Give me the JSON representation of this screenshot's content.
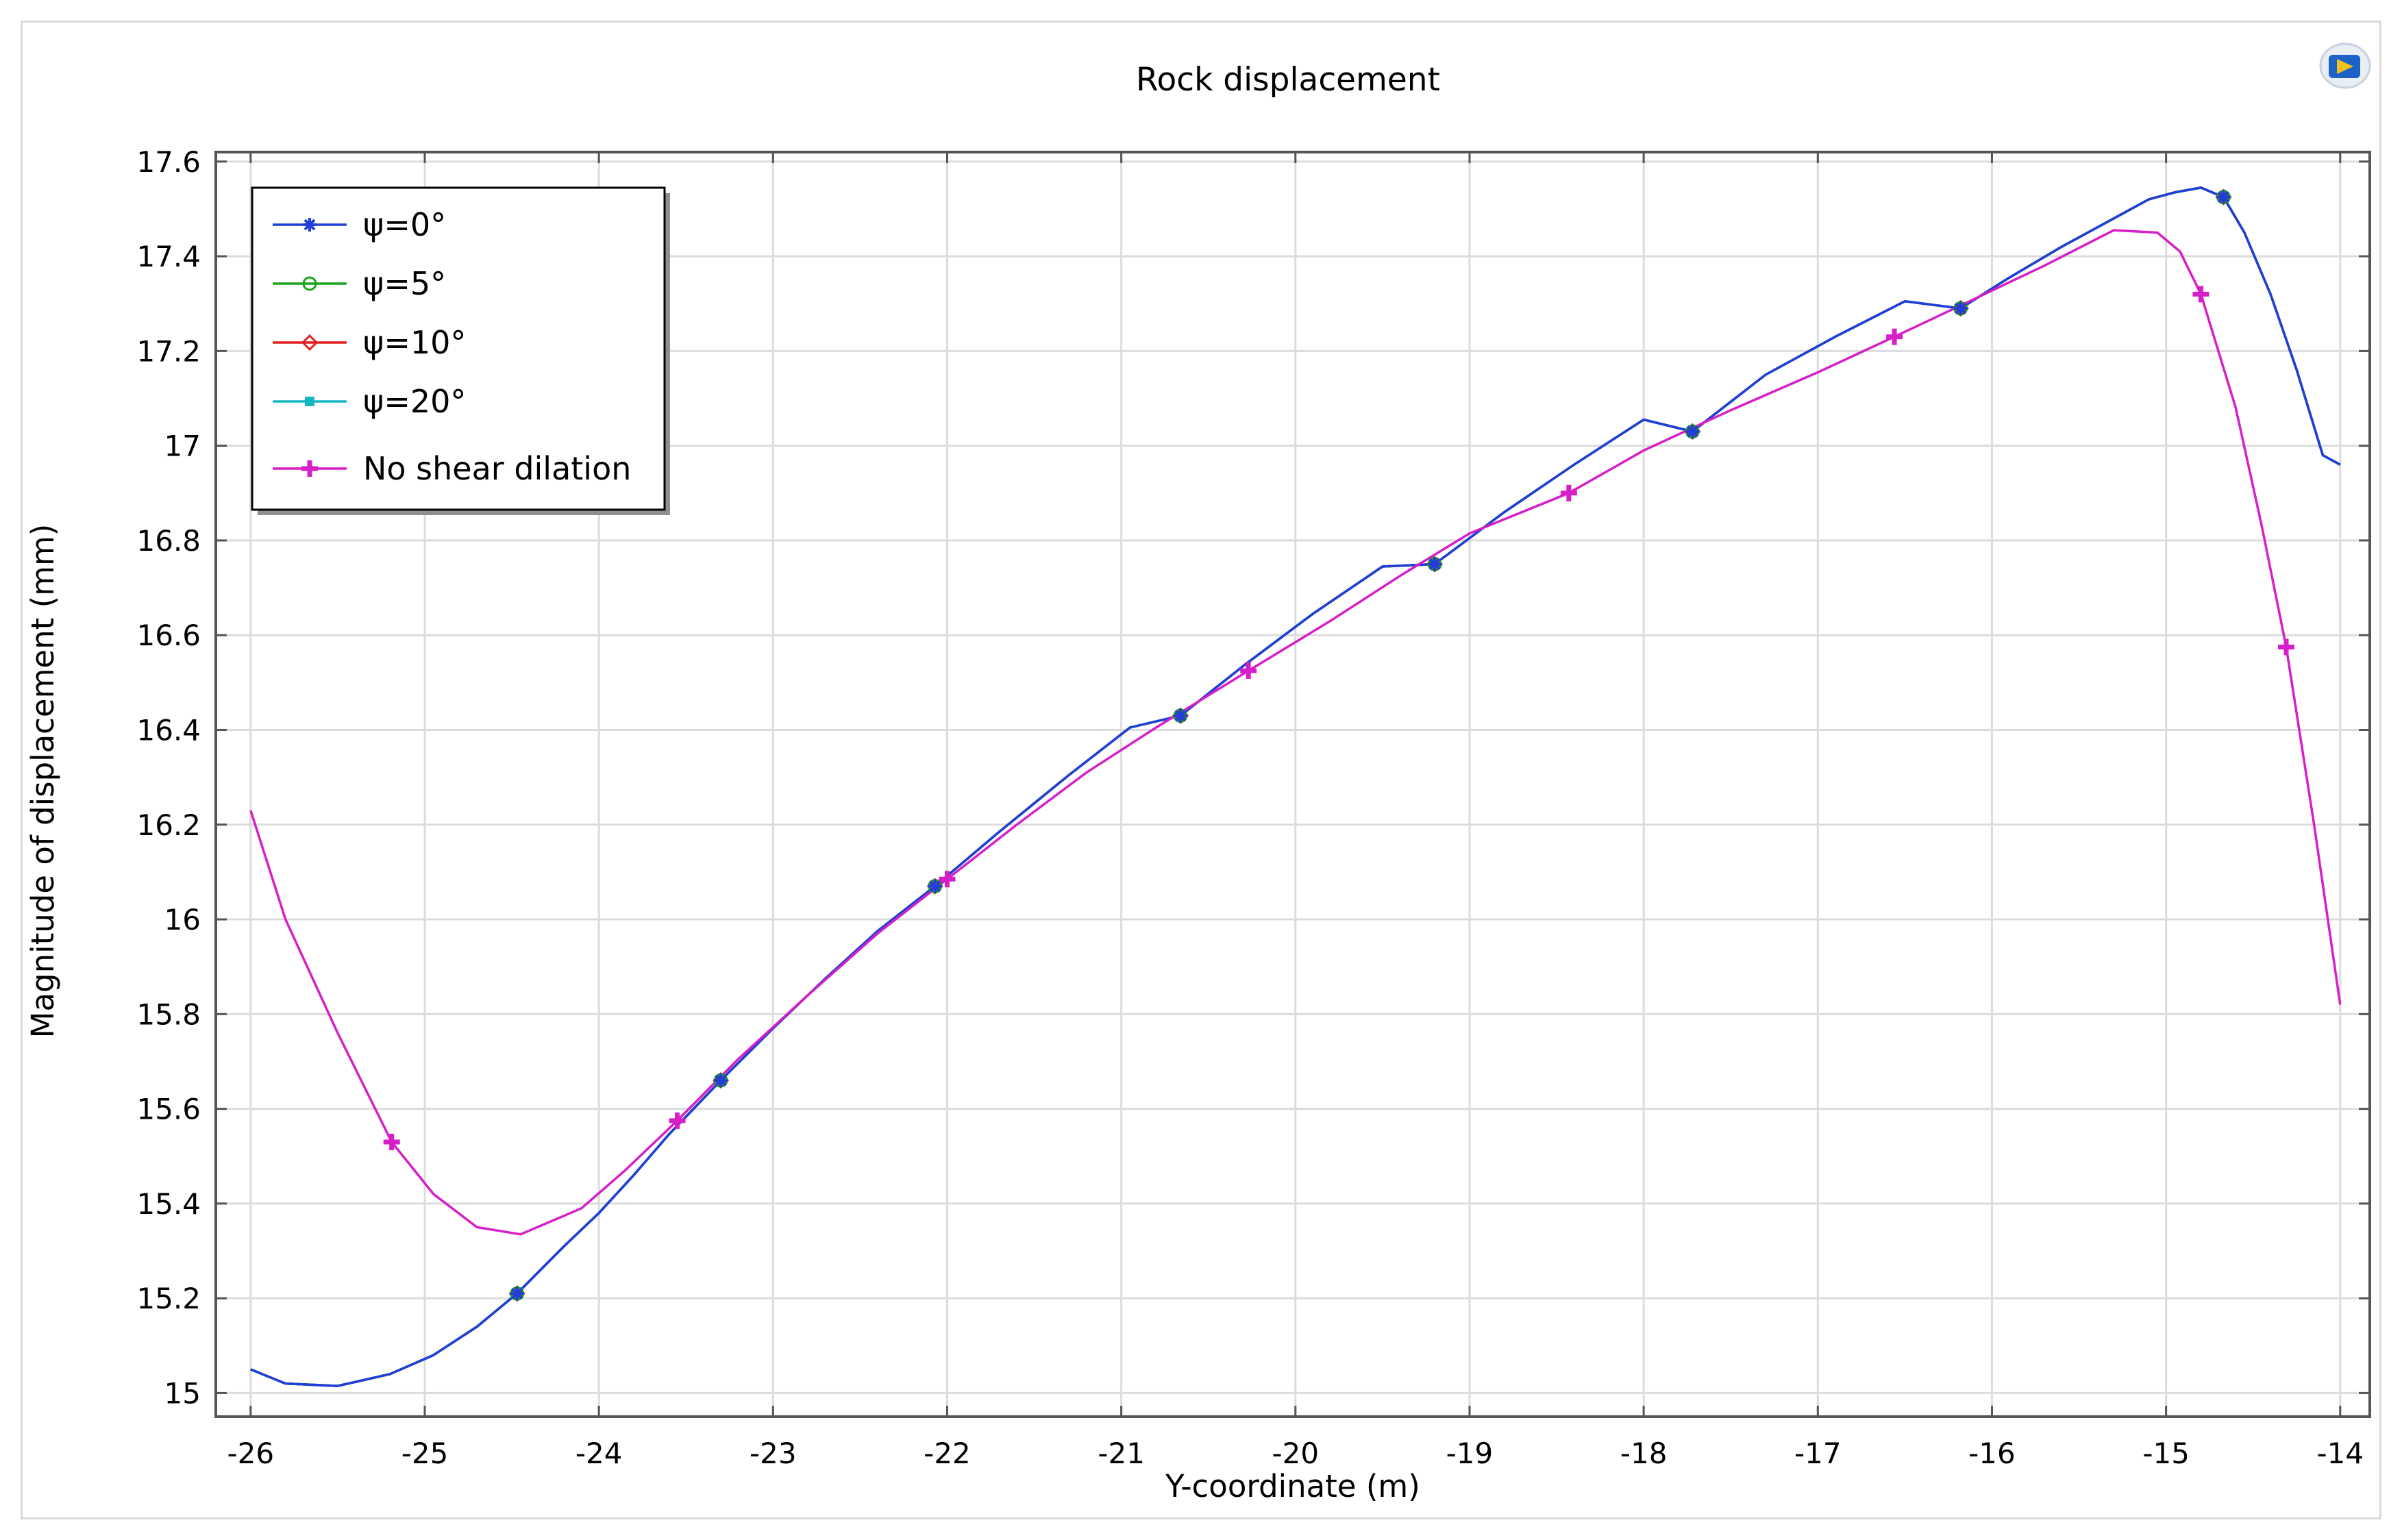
{
  "chart_data": {
    "type": "line",
    "title": "Rock displacement",
    "xlabel": "Y-coordinate (m)",
    "ylabel": "Magnitude of displacement (mm)",
    "xlim": [
      -26.2,
      -13.83
    ],
    "ylim": [
      14.95,
      17.62
    ],
    "x_ticks": [
      -26,
      -25,
      -24,
      -23,
      -22,
      -21,
      -20,
      -19,
      -18,
      -17,
      -16,
      -15,
      -14
    ],
    "x_tick_labels": [
      "-26",
      "-25",
      "-24",
      "-23",
      "-22",
      "-21",
      "-20",
      "-19",
      "-18",
      "-17",
      "-16",
      "-15",
      "-14"
    ],
    "y_ticks": [
      15,
      15.2,
      15.4,
      15.6,
      15.8,
      16,
      16.2,
      16.4,
      16.6,
      16.8,
      17,
      17.2,
      17.4,
      17.6
    ],
    "y_tick_labels": [
      "15",
      "15.2",
      "15.4",
      "15.6",
      "15.8",
      "16",
      "16.2",
      "16.4",
      "16.6",
      "16.8",
      "17",
      "17.2",
      "17.4",
      "17.6"
    ],
    "grid": true,
    "legend_position": "top-left",
    "series": [
      {
        "name": "ψ=0°",
        "color": "#1f3fd8",
        "marker": "asterisk",
        "x": [
          -26.0,
          -25.8,
          -25.5,
          -25.2,
          -24.95,
          -24.7,
          -24.47,
          -24.2,
          -24.0,
          -23.8,
          -23.6,
          -23.3,
          -23.0,
          -22.7,
          -22.4,
          -22.07,
          -21.7,
          -21.3,
          -20.95,
          -20.66,
          -20.3,
          -19.9,
          -19.5,
          -19.2,
          -18.8,
          -18.4,
          -18.0,
          -17.72,
          -17.3,
          -16.9,
          -16.5,
          -16.18,
          -15.9,
          -15.6,
          -15.3,
          -15.1,
          -14.95,
          -14.8,
          -14.67,
          -14.55,
          -14.4,
          -14.25,
          -14.1,
          -14.0
        ],
        "y": [
          15.05,
          15.02,
          15.015,
          15.04,
          15.08,
          15.14,
          15.21,
          15.31,
          15.38,
          15.46,
          15.545,
          15.66,
          15.77,
          15.875,
          15.975,
          16.07,
          16.185,
          16.305,
          16.405,
          16.43,
          16.535,
          16.645,
          16.745,
          16.75,
          16.86,
          16.96,
          17.055,
          17.03,
          17.15,
          17.23,
          17.305,
          17.29,
          17.355,
          17.42,
          17.48,
          17.52,
          17.535,
          17.545,
          17.525,
          17.45,
          17.32,
          17.16,
          16.98,
          16.96
        ]
      },
      {
        "name": "ψ=5°",
        "color": "#1aa51a",
        "marker": "circle",
        "x": [
          -26.0,
          -25.8,
          -25.5,
          -25.2,
          -24.95,
          -24.7,
          -24.47,
          -24.2,
          -24.0,
          -23.8,
          -23.6,
          -23.3,
          -23.0,
          -22.7,
          -22.4,
          -22.07,
          -21.7,
          -21.3,
          -20.95,
          -20.66,
          -20.3,
          -19.9,
          -19.5,
          -19.2,
          -18.8,
          -18.4,
          -18.0,
          -17.72,
          -17.3,
          -16.9,
          -16.5,
          -16.18,
          -15.9,
          -15.6,
          -15.3,
          -15.1,
          -14.95,
          -14.8,
          -14.67,
          -14.55,
          -14.4,
          -14.25,
          -14.1,
          -14.0
        ],
        "y": [
          15.05,
          15.02,
          15.015,
          15.04,
          15.08,
          15.14,
          15.21,
          15.31,
          15.38,
          15.46,
          15.545,
          15.66,
          15.77,
          15.875,
          15.975,
          16.07,
          16.185,
          16.305,
          16.405,
          16.43,
          16.535,
          16.645,
          16.745,
          16.75,
          16.86,
          16.96,
          17.055,
          17.03,
          17.15,
          17.23,
          17.305,
          17.29,
          17.355,
          17.42,
          17.48,
          17.52,
          17.535,
          17.545,
          17.525,
          17.45,
          17.32,
          17.16,
          16.98,
          16.96
        ]
      },
      {
        "name": "ψ=10°",
        "color": "#e02020",
        "marker": "diamond",
        "x": [
          -26.0,
          -25.8,
          -25.5,
          -25.2,
          -24.95,
          -24.7,
          -24.47,
          -24.2,
          -24.0,
          -23.8,
          -23.6,
          -23.3,
          -23.0,
          -22.7,
          -22.4,
          -22.07,
          -21.7,
          -21.3,
          -20.95,
          -20.66,
          -20.3,
          -19.9,
          -19.5,
          -19.2,
          -18.8,
          -18.4,
          -18.0,
          -17.72,
          -17.3,
          -16.9,
          -16.5,
          -16.18,
          -15.9,
          -15.6,
          -15.3,
          -15.1,
          -14.95,
          -14.8,
          -14.67,
          -14.55,
          -14.4,
          -14.25,
          -14.1,
          -14.0
        ],
        "y": [
          15.05,
          15.02,
          15.015,
          15.04,
          15.08,
          15.14,
          15.21,
          15.31,
          15.38,
          15.46,
          15.545,
          15.66,
          15.77,
          15.875,
          15.975,
          16.07,
          16.185,
          16.305,
          16.405,
          16.43,
          16.535,
          16.645,
          16.745,
          16.75,
          16.86,
          16.96,
          17.055,
          17.03,
          17.15,
          17.23,
          17.305,
          17.29,
          17.355,
          17.42,
          17.48,
          17.52,
          17.535,
          17.545,
          17.525,
          17.45,
          17.32,
          17.16,
          16.98,
          16.96
        ]
      },
      {
        "name": "ψ=20°",
        "color": "#17b6c0",
        "marker": "square",
        "x": [
          -26.0,
          -25.8,
          -25.5,
          -25.2,
          -24.95,
          -24.7,
          -24.47,
          -24.2,
          -24.0,
          -23.8,
          -23.6,
          -23.3,
          -23.0,
          -22.7,
          -22.4,
          -22.07,
          -21.7,
          -21.3,
          -20.95,
          -20.66,
          -20.3,
          -19.9,
          -19.5,
          -19.2,
          -18.8,
          -18.4,
          -18.0,
          -17.72,
          -17.3,
          -16.9,
          -16.5,
          -16.18,
          -15.9,
          -15.6,
          -15.3,
          -15.1,
          -14.95,
          -14.8,
          -14.67,
          -14.55,
          -14.4,
          -14.25,
          -14.1,
          -14.0
        ],
        "y": [
          15.05,
          15.02,
          15.015,
          15.04,
          15.08,
          15.14,
          15.21,
          15.31,
          15.38,
          15.46,
          15.545,
          15.66,
          15.77,
          15.875,
          15.975,
          16.07,
          16.185,
          16.305,
          16.405,
          16.43,
          16.535,
          16.645,
          16.745,
          16.75,
          16.86,
          16.96,
          17.055,
          17.03,
          17.15,
          17.23,
          17.305,
          17.29,
          17.355,
          17.42,
          17.48,
          17.52,
          17.535,
          17.545,
          17.525,
          17.45,
          17.32,
          17.16,
          16.98,
          16.96
        ]
      },
      {
        "name": "No shear dilation",
        "color": "#d61fc8",
        "marker": "plus",
        "x": [
          -26.0,
          -25.8,
          -25.5,
          -25.19,
          -24.95,
          -24.7,
          -24.45,
          -24.1,
          -23.85,
          -23.55,
          -23.2,
          -22.8,
          -22.4,
          -22.0,
          -21.6,
          -21.2,
          -20.8,
          -20.27,
          -19.8,
          -19.4,
          -19.0,
          -18.43,
          -18.0,
          -17.5,
          -17.0,
          -16.56,
          -16.1,
          -15.7,
          -15.3,
          -15.05,
          -14.92,
          -14.8,
          -14.6,
          -14.45,
          -14.31,
          -14.15,
          -14.0
        ],
        "y": [
          16.23,
          16.0,
          15.76,
          15.53,
          15.42,
          15.35,
          15.335,
          15.39,
          15.47,
          15.575,
          15.705,
          15.84,
          15.97,
          16.085,
          16.2,
          16.31,
          16.405,
          16.525,
          16.63,
          16.725,
          16.815,
          16.9,
          16.99,
          17.075,
          17.155,
          17.23,
          17.31,
          17.38,
          17.455,
          17.45,
          17.41,
          17.32,
          17.08,
          16.83,
          16.575,
          16.2,
          15.82
        ]
      }
    ],
    "marker_positions": {
      "psi": {
        "x": [
          -24.47,
          -23.3,
          -22.07,
          -20.66,
          -19.2,
          -17.72,
          -16.18,
          -14.67
        ],
        "y": [
          15.21,
          15.66,
          16.07,
          16.43,
          16.75,
          17.03,
          17.29,
          17.525
        ]
      },
      "no_dilation": {
        "x": [
          -25.19,
          -23.55,
          -22.0,
          -20.27,
          -18.43,
          -16.56,
          -14.8,
          -14.31
        ],
        "y": [
          15.53,
          15.575,
          16.085,
          16.525,
          16.9,
          17.23,
          17.32,
          16.575
        ]
      }
    }
  }
}
